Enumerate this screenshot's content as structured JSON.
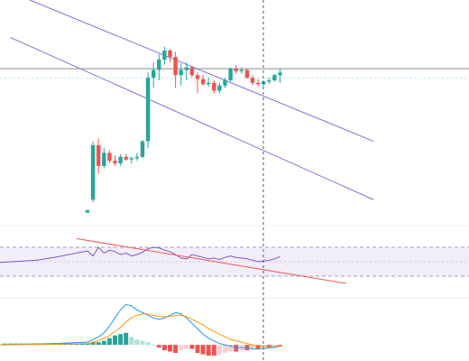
{
  "colors": {
    "bull": "#26a69a",
    "bear": "#ef5350",
    "channel": "#7b73d6",
    "price_line": "#8c8c8c",
    "crosshair": "#555555",
    "rsi_line": "#7e57c2",
    "rsi_band_fill": "#ede7f6",
    "rsi_trend": "#ef5350",
    "macd_line": "#2196f3",
    "signal_line": "#ff9800",
    "hist_pos_strong": "#26a69a",
    "hist_pos_weak": "#b2dfdb",
    "hist_neg_strong": "#ef5350",
    "hist_neg_weak": "#ffcdd2"
  },
  "chart_data": [
    {
      "type": "candlestick",
      "panel": "price",
      "candles": [
        {
          "o": 30,
          "h": 32,
          "l": 30,
          "c": 32
        },
        {
          "o": 40,
          "h": 85,
          "l": 38,
          "c": 82
        },
        {
          "o": 82,
          "h": 87,
          "l": 60,
          "c": 66
        },
        {
          "o": 66,
          "h": 80,
          "l": 64,
          "c": 76
        },
        {
          "o": 76,
          "h": 78,
          "l": 68,
          "c": 70
        },
        {
          "o": 70,
          "h": 74,
          "l": 66,
          "c": 68
        },
        {
          "o": 68,
          "h": 75,
          "l": 66,
          "c": 73
        },
        {
          "o": 73,
          "h": 75,
          "l": 70,
          "c": 71
        },
        {
          "o": 71,
          "h": 73,
          "l": 68,
          "c": 72
        },
        {
          "o": 72,
          "h": 76,
          "l": 70,
          "c": 73
        },
        {
          "o": 73,
          "h": 86,
          "l": 72,
          "c": 85
        },
        {
          "o": 85,
          "h": 138,
          "l": 80,
          "c": 134
        },
        {
          "o": 134,
          "h": 146,
          "l": 126,
          "c": 140
        },
        {
          "o": 140,
          "h": 152,
          "l": 132,
          "c": 148
        },
        {
          "o": 148,
          "h": 158,
          "l": 144,
          "c": 155
        },
        {
          "o": 155,
          "h": 156,
          "l": 146,
          "c": 150
        },
        {
          "o": 150,
          "h": 154,
          "l": 126,
          "c": 136
        },
        {
          "o": 136,
          "h": 145,
          "l": 128,
          "c": 140
        },
        {
          "o": 140,
          "h": 146,
          "l": 132,
          "c": 142
        },
        {
          "o": 142,
          "h": 143,
          "l": 134,
          "c": 136
        },
        {
          "o": 136,
          "h": 138,
          "l": 122,
          "c": 133
        },
        {
          "o": 133,
          "h": 136,
          "l": 128,
          "c": 129
        },
        {
          "o": 129,
          "h": 134,
          "l": 127,
          "c": 130
        },
        {
          "o": 130,
          "h": 132,
          "l": 122,
          "c": 124
        },
        {
          "o": 124,
          "h": 130,
          "l": 122,
          "c": 128
        },
        {
          "o": 128,
          "h": 134,
          "l": 126,
          "c": 132
        },
        {
          "o": 132,
          "h": 142,
          "l": 131,
          "c": 141
        },
        {
          "o": 141,
          "h": 144,
          "l": 137,
          "c": 139
        },
        {
          "o": 139,
          "h": 142,
          "l": 137,
          "c": 140
        },
        {
          "o": 140,
          "h": 141,
          "l": 133,
          "c": 134
        },
        {
          "o": 134,
          "h": 136,
          "l": 128,
          "c": 130
        },
        {
          "o": 130,
          "h": 133,
          "l": 127,
          "c": 129
        },
        {
          "o": 129,
          "h": 132,
          "l": 127,
          "c": 131
        },
        {
          "o": 131,
          "h": 134,
          "l": 129,
          "c": 132
        },
        {
          "o": 132,
          "h": 137,
          "l": 131,
          "c": 136
        },
        {
          "o": 136,
          "h": 141,
          "l": 130,
          "c": 138
        }
      ],
      "current_price": 141,
      "channel": {
        "upper": [
          {
            "i": -14,
            "v": 200
          },
          {
            "i": 52,
            "v": 85
          }
        ],
        "lower": [
          {
            "i": -14,
            "v": 165
          },
          {
            "i": 52,
            "v": 40
          }
        ]
      },
      "ylim": [
        20,
        180
      ]
    },
    {
      "type": "line",
      "panel": "rsi",
      "values": [
        65,
        58,
        70,
        62,
        66,
        64,
        60,
        62,
        58,
        60,
        63,
        68,
        70,
        69,
        66,
        64,
        60,
        55,
        54,
        60,
        58,
        56,
        54,
        55,
        53,
        56,
        58,
        56,
        55,
        54,
        52,
        50,
        51,
        52,
        54,
        57
      ],
      "band": [
        30,
        70
      ],
      "midline": 50,
      "trendline": [
        {
          "i": -2,
          "v": 82
        },
        {
          "i": 47,
          "v": 20
        }
      ],
      "ylim": [
        0,
        100
      ]
    },
    {
      "type": "bar+line",
      "panel": "macd",
      "histogram": [
        1,
        2,
        2,
        3,
        5,
        7,
        8,
        9,
        6,
        4,
        3,
        2,
        0,
        -2,
        -4,
        -5,
        -6,
        -4,
        -3,
        -3,
        -6,
        -7,
        -8,
        -8,
        -7,
        -6,
        -5,
        -5,
        -4,
        -4,
        -3,
        -3,
        -2,
        -2,
        -1,
        -1
      ],
      "macd": [
        2,
        4,
        6,
        9,
        14,
        20,
        26,
        30,
        29,
        26,
        24,
        22,
        20,
        19,
        20,
        22,
        24,
        23,
        20,
        16,
        12,
        8,
        5,
        3,
        1,
        0,
        -1,
        -2,
        -2,
        -2,
        -3,
        -3,
        -3,
        -2,
        -2,
        -1
      ],
      "signal": [
        1,
        2,
        3,
        5,
        7,
        10,
        13,
        17,
        20,
        22,
        23,
        23,
        22,
        21,
        21,
        21,
        22,
        22,
        21,
        19,
        17,
        15,
        12,
        10,
        8,
        6,
        4,
        3,
        2,
        1,
        0,
        -1,
        -1,
        -1,
        -1,
        -1
      ],
      "ylim": [
        -12,
        35
      ]
    }
  ]
}
